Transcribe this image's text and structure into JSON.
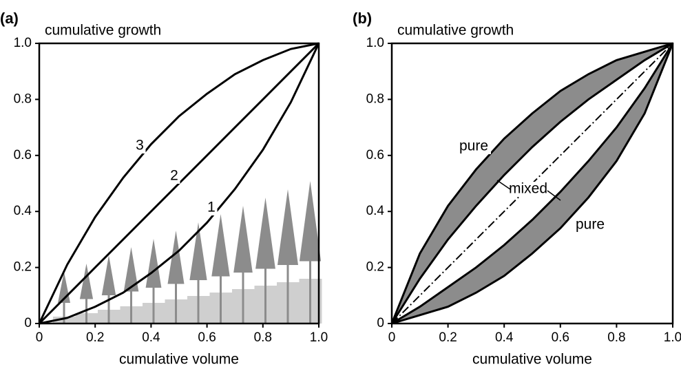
{
  "chart_data": [
    {
      "type": "line",
      "panel": "(a)",
      "ylabel": "cumulative growth",
      "xlabel": "cumulative volume",
      "x": [
        0,
        0.1,
        0.2,
        0.3,
        0.4,
        0.5,
        0.6,
        0.7,
        0.8,
        0.9,
        1
      ],
      "xlim": [
        0,
        1
      ],
      "ylim": [
        0,
        1
      ],
      "xticks": [
        0,
        0.2,
        0.4,
        0.6,
        0.8,
        {
          "value": 1,
          "label": "1.0"
        }
      ],
      "yticks": [
        0,
        0.2,
        0.4,
        0.6,
        0.8,
        {
          "value": 1,
          "label": "1.0"
        }
      ],
      "series": [
        {
          "name": "3",
          "color": "#000000",
          "dash": "solid",
          "values": [
            0,
            0.21,
            0.38,
            0.52,
            0.64,
            0.74,
            0.82,
            0.89,
            0.94,
            0.98,
            1
          ]
        },
        {
          "name": "2",
          "color": "#000000",
          "dash": "solid",
          "values": [
            0,
            0.1,
            0.2,
            0.3,
            0.4,
            0.5,
            0.6,
            0.7,
            0.8,
            0.9,
            1
          ]
        },
        {
          "name": "1",
          "color": "#000000",
          "dash": "solid",
          "values": [
            0,
            0.02,
            0.06,
            0.11,
            0.18,
            0.26,
            0.36,
            0.48,
            0.62,
            0.79,
            1
          ]
        },
        {
          "color": "#000000",
          "dash": "dashdot",
          "values": [
            0,
            0.1,
            0.2,
            0.3,
            0.4,
            0.5,
            0.6,
            0.7,
            0.8,
            0.9,
            1
          ]
        }
      ]
    },
    {
      "type": "line",
      "panel": "(b)",
      "ylabel": "cumulative growth",
      "xlabel": "cumulative volume",
      "x": [
        0,
        0.1,
        0.2,
        0.3,
        0.4,
        0.5,
        0.6,
        0.7,
        0.8,
        0.9,
        1
      ],
      "xlim": [
        0,
        1
      ],
      "ylim": [
        0,
        1
      ],
      "xticks": [
        0,
        0.2,
        0.4,
        0.6,
        0.8,
        {
          "value": 1,
          "label": "1.0"
        }
      ],
      "yticks": [
        0,
        0.2,
        0.4,
        0.6,
        0.8,
        {
          "value": 1,
          "label": "1.0"
        }
      ],
      "shade_color": "#8c8c8c",
      "shaded_between": [
        [
          0,
          1
        ],
        [
          3,
          2
        ]
      ],
      "series": [
        {
          "name": "pure",
          "color": "#000000",
          "dash": "solid",
          "values": [
            0,
            0.25,
            0.42,
            0.55,
            0.66,
            0.75,
            0.83,
            0.89,
            0.94,
            0.97,
            1
          ]
        },
        {
          "name": "mixed",
          "color": "#000000",
          "dash": "solid",
          "values": [
            0,
            0.16,
            0.3,
            0.42,
            0.53,
            0.63,
            0.72,
            0.8,
            0.87,
            0.94,
            1
          ]
        },
        {
          "name": "pure",
          "color": "#000000",
          "dash": "solid",
          "values": [
            0,
            0.03,
            0.06,
            0.11,
            0.17,
            0.25,
            0.34,
            0.45,
            0.58,
            0.75,
            1
          ]
        },
        {
          "color": "#000000",
          "dash": "solid",
          "values": [
            0,
            0.06,
            0.13,
            0.2,
            0.28,
            0.37,
            0.47,
            0.58,
            0.7,
            0.84,
            1
          ]
        },
        {
          "color": "#000000",
          "dash": "dashdot",
          "values": [
            0,
            0.1,
            0.2,
            0.3,
            0.4,
            0.5,
            0.6,
            0.7,
            0.8,
            0.9,
            1
          ]
        }
      ]
    }
  ]
}
